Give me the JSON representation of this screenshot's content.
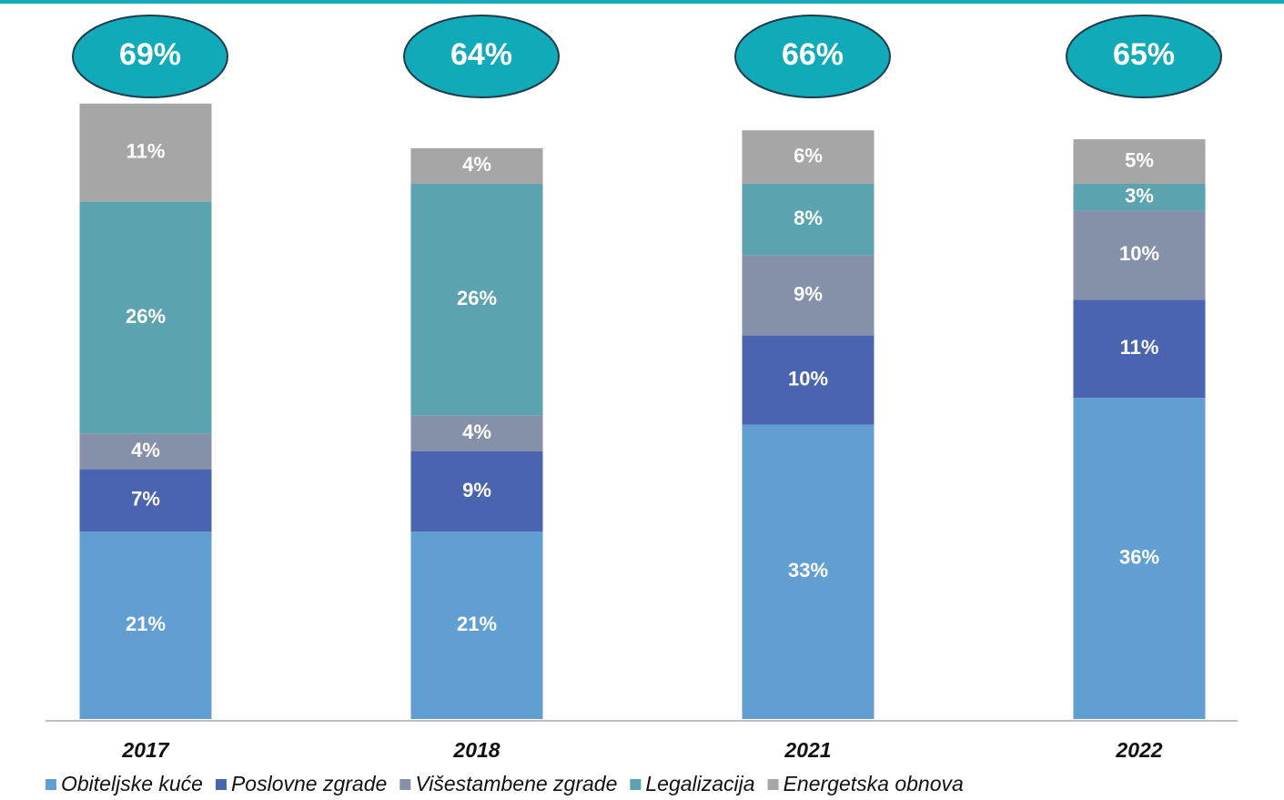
{
  "chart_data": {
    "type": "stacked_bar",
    "categories": [
      "2017",
      "2018",
      "2021",
      "2022"
    ],
    "series": [
      {
        "name": "Obiteljske kuće",
        "color": "#619fd3",
        "values": [
          21,
          21,
          33,
          36
        ],
        "value_labels": [
          "21%",
          "21%",
          "33%",
          "36%"
        ]
      },
      {
        "name": "Poslovne zgrade",
        "color": "#4a64b0",
        "values": [
          7,
          9,
          10,
          11
        ],
        "value_labels": [
          "7%",
          "9%",
          "10%",
          "11%"
        ]
      },
      {
        "name": "Višestambene zgrade",
        "color": "#8590a9",
        "values": [
          4,
          4,
          9,
          10
        ],
        "value_labels": [
          "4%",
          "4%",
          "9%",
          "10%"
        ]
      },
      {
        "name": "Legalizacija",
        "color": "#5ba3ae",
        "values": [
          26,
          26,
          8,
          3
        ],
        "value_labels": [
          "26%",
          "26%",
          "8%",
          "3%"
        ]
      },
      {
        "name": "Energetska obnova",
        "color": "#a6a6a6",
        "values": [
          11,
          4,
          6,
          5
        ],
        "value_labels": [
          "11%",
          "4%",
          "6%",
          "5%"
        ]
      }
    ],
    "totals": [
      69,
      64,
      66,
      65
    ],
    "total_labels": [
      "69%",
      "64%",
      "66%",
      "65%"
    ],
    "total_color": "#10aab8"
  }
}
